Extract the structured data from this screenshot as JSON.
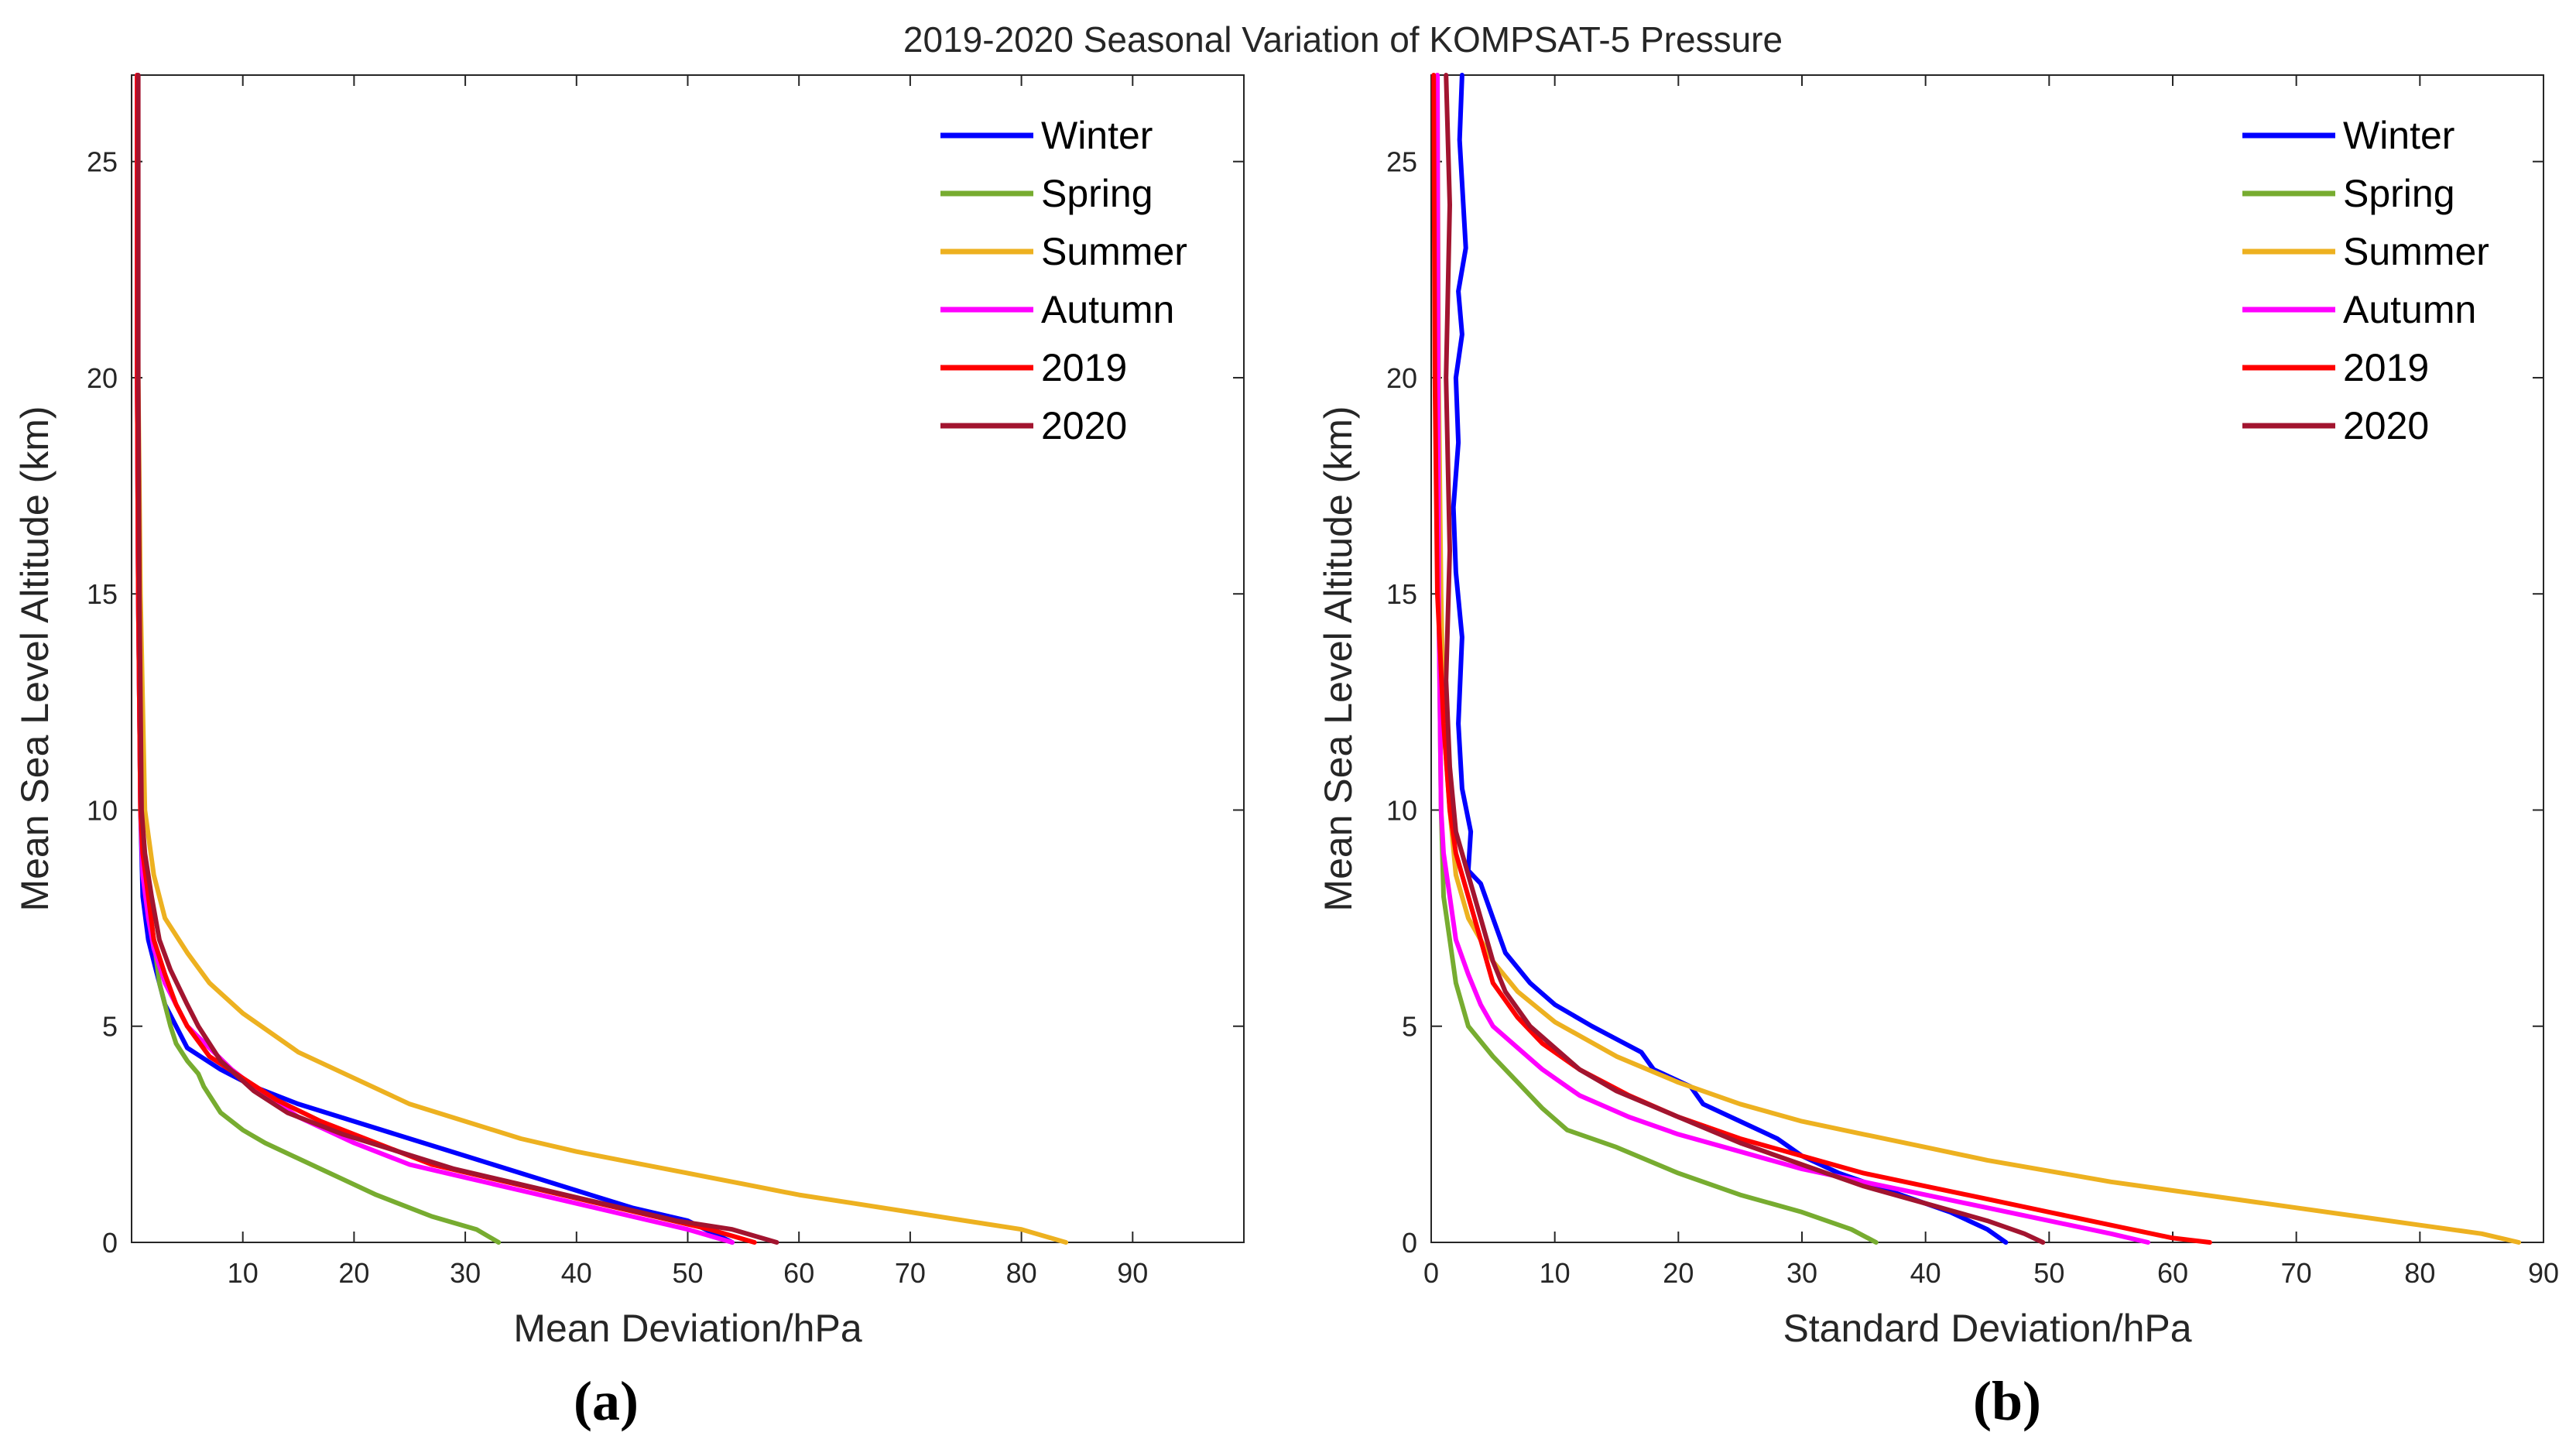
{
  "figure_title": "2019-2020 Seasonal Variation of KOMPSAT-5 Pressure",
  "panel_labels": [
    "(a)",
    "(b)"
  ],
  "chart_data": [
    {
      "type": "line",
      "panel": "(a)",
      "xlabel": "Mean Deviation/hPa",
      "ylabel": "Mean Sea Level Altitude (km)",
      "xlim": [
        0,
        100
      ],
      "ylim": [
        0,
        27
      ],
      "xticks": [
        10,
        20,
        30,
        40,
        50,
        60,
        70,
        80,
        90
      ],
      "yticks": [
        0,
        5,
        10,
        15,
        20,
        25
      ],
      "grid": false,
      "legend_position": "top-right",
      "series": [
        {
          "name": "Winter",
          "color": "#0000ff",
          "x": [
            54,
            50,
            45,
            40,
            35,
            30,
            25,
            20,
            15,
            11,
            8,
            5,
            4,
            3,
            2.5,
            2,
            1.5,
            1,
            0.8,
            0.6,
            0.5,
            0.5
          ],
          "y": [
            0,
            0.5,
            0.8,
            1.2,
            1.6,
            2,
            2.4,
            2.8,
            3.2,
            3.6,
            4,
            4.5,
            5,
            5.5,
            6,
            6.5,
            7,
            8,
            10,
            15,
            20,
            27
          ]
        },
        {
          "name": "Spring",
          "color": "#77ac30",
          "x": [
            33,
            31,
            27,
            22,
            17,
            12,
            10,
            8,
            6.5,
            6,
            5,
            4,
            3.5,
            2.5,
            2,
            1.5,
            1,
            0.8,
            0.6,
            0.5,
            0.5
          ],
          "y": [
            0,
            0.3,
            0.6,
            1.1,
            1.7,
            2.3,
            2.6,
            3,
            3.6,
            3.9,
            4.2,
            4.6,
            5,
            6,
            7,
            8,
            9,
            10,
            15,
            20,
            27
          ]
        },
        {
          "name": "Summer",
          "color": "#edb120",
          "x": [
            84,
            80,
            75,
            70,
            65,
            60,
            55,
            50,
            45,
            40,
            35,
            30,
            25,
            20,
            15,
            10,
            7,
            5,
            3,
            2,
            1.2,
            0.8,
            0.6,
            0.5
          ],
          "y": [
            0,
            0.3,
            0.5,
            0.7,
            0.9,
            1.1,
            1.35,
            1.6,
            1.85,
            2.1,
            2.4,
            2.8,
            3.2,
            3.8,
            4.4,
            5.3,
            6,
            6.7,
            7.5,
            8.5,
            10,
            15,
            20,
            27
          ]
        },
        {
          "name": "Autumn",
          "color": "#ff00ff",
          "x": [
            54,
            50,
            45,
            40,
            35,
            30,
            25,
            20,
            15,
            12,
            9,
            7,
            5,
            4,
            3,
            2,
            1.5,
            1,
            0.8,
            0.6,
            0.5,
            0.5
          ],
          "y": [
            0,
            0.3,
            0.6,
            0.9,
            1.2,
            1.5,
            1.8,
            2.3,
            2.9,
            3.4,
            4,
            4.5,
            5,
            5.5,
            6,
            6.8,
            7.5,
            8.5,
            10,
            15,
            20,
            27
          ]
        },
        {
          "name": "2019",
          "color": "#ff0000",
          "x": [
            56,
            52,
            47,
            42,
            37,
            32,
            27,
            22,
            17,
            13,
            10,
            7,
            5,
            4,
            3,
            2,
            1.5,
            1,
            0.8,
            0.6,
            0.5,
            0.5
          ],
          "y": [
            0,
            0.3,
            0.6,
            0.9,
            1.2,
            1.5,
            1.8,
            2.3,
            2.8,
            3.3,
            3.8,
            4.3,
            5,
            5.5,
            6.2,
            7,
            8,
            9,
            10,
            15,
            20,
            27
          ]
        },
        {
          "name": "2020",
          "color": "#a2142f",
          "x": [
            58,
            54,
            49,
            44,
            39,
            34,
            29,
            24,
            19,
            14,
            11,
            8,
            6,
            5,
            3.5,
            2.5,
            1.8,
            1.2,
            0.9,
            0.7,
            0.6,
            0.6
          ],
          "y": [
            0,
            0.3,
            0.5,
            0.8,
            1.1,
            1.4,
            1.7,
            2.1,
            2.5,
            3,
            3.5,
            4.2,
            5,
            5.5,
            6.3,
            7,
            8,
            9,
            10,
            15,
            20,
            27
          ]
        }
      ]
    },
    {
      "type": "line",
      "panel": "(b)",
      "xlabel": "Standard Deviation/hPa",
      "ylabel": "Mean Sea Level Altitude (km)",
      "xlim": [
        0,
        90
      ],
      "ylim": [
        0,
        27
      ],
      "xticks": [
        0,
        10,
        20,
        30,
        40,
        50,
        60,
        70,
        80,
        90
      ],
      "yticks": [
        0,
        5,
        10,
        15,
        20,
        25
      ],
      "grid": false,
      "legend_position": "top-right",
      "series": [
        {
          "name": "Winter",
          "color": "#0000ff",
          "x": [
            46.5,
            45,
            42,
            38,
            33,
            30,
            28,
            25,
            22,
            21,
            18,
            17,
            15,
            13,
            10,
            8,
            6,
            5,
            4,
            3,
            3.2,
            2.5,
            2.2,
            2.5,
            2,
            1.8,
            2.2,
            2,
            2.5,
            2.2,
            2.8,
            2.5,
            2.3,
            2.5
          ],
          "y": [
            0,
            0.3,
            0.7,
            1.1,
            1.6,
            2,
            2.4,
            2.8,
            3.2,
            3.6,
            4,
            4.4,
            4.7,
            5,
            5.5,
            6,
            6.7,
            7.5,
            8.3,
            8.6,
            9.5,
            10.5,
            12,
            14,
            15.5,
            17,
            18.5,
            20,
            21,
            22,
            23,
            24.5,
            25.5,
            27
          ]
        },
        {
          "name": "Spring",
          "color": "#77ac30",
          "x": [
            36,
            34,
            30,
            25,
            20,
            15,
            11,
            9,
            7,
            5,
            3,
            2,
            1.5,
            1,
            0.8,
            0.6,
            0.5,
            0.5
          ],
          "y": [
            0,
            0.3,
            0.7,
            1.1,
            1.6,
            2.2,
            2.6,
            3.1,
            3.7,
            4.3,
            5,
            6,
            7,
            8,
            10,
            15,
            20,
            27
          ]
        },
        {
          "name": "Summer",
          "color": "#edb120",
          "x": [
            88,
            85,
            80,
            75,
            70,
            65,
            60,
            55,
            50,
            45,
            40,
            35,
            30,
            25,
            20,
            15,
            10,
            7,
            5,
            3,
            2,
            1.5,
            1,
            0.8,
            0.6,
            0.5
          ],
          "y": [
            0,
            0.2,
            0.4,
            0.6,
            0.8,
            1,
            1.2,
            1.4,
            1.65,
            1.9,
            2.2,
            2.5,
            2.8,
            3.2,
            3.7,
            4.3,
            5.1,
            5.8,
            6.5,
            7.5,
            8.5,
            10,
            12,
            15,
            20,
            27
          ]
        },
        {
          "name": "Autumn",
          "color": "#ff00ff",
          "x": [
            58,
            55,
            50,
            45,
            40,
            35,
            30,
            25,
            20,
            16,
            12,
            9,
            7,
            5,
            4,
            3,
            2,
            1.5,
            1,
            0.8,
            0.6,
            0.5
          ],
          "y": [
            0,
            0.2,
            0.5,
            0.8,
            1.1,
            1.4,
            1.7,
            2.1,
            2.5,
            2.9,
            3.4,
            4,
            4.5,
            5,
            5.5,
            6.2,
            7,
            8,
            9,
            10,
            15,
            27
          ]
        },
        {
          "name": "2019",
          "color": "#ff0000",
          "x": [
            63,
            60,
            55,
            50,
            45,
            40,
            35,
            30,
            25,
            20,
            16,
            12,
            9,
            7,
            5,
            4,
            3,
            2,
            1.5,
            1,
            0.5,
            0.3,
            0.2
          ],
          "y": [
            0,
            0.1,
            0.4,
            0.7,
            1,
            1.3,
            1.6,
            2,
            2.4,
            2.9,
            3.4,
            4,
            4.6,
            5.2,
            6,
            7,
            8,
            9,
            10,
            12,
            15,
            20,
            27
          ]
        },
        {
          "name": "2020",
          "color": "#a2142f",
          "x": [
            49.5,
            48,
            45,
            40,
            35,
            30,
            25,
            20,
            15,
            12,
            10,
            8,
            6,
            5,
            4,
            3,
            2,
            1.5,
            1.2,
            1.5,
            1.2,
            1.5,
            1.2
          ],
          "y": [
            0,
            0.2,
            0.5,
            0.9,
            1.3,
            1.8,
            2.3,
            2.9,
            3.5,
            4,
            4.5,
            5,
            5.8,
            6.5,
            7.5,
            8.5,
            9.5,
            11,
            13,
            16,
            20,
            24,
            27
          ]
        }
      ]
    }
  ]
}
